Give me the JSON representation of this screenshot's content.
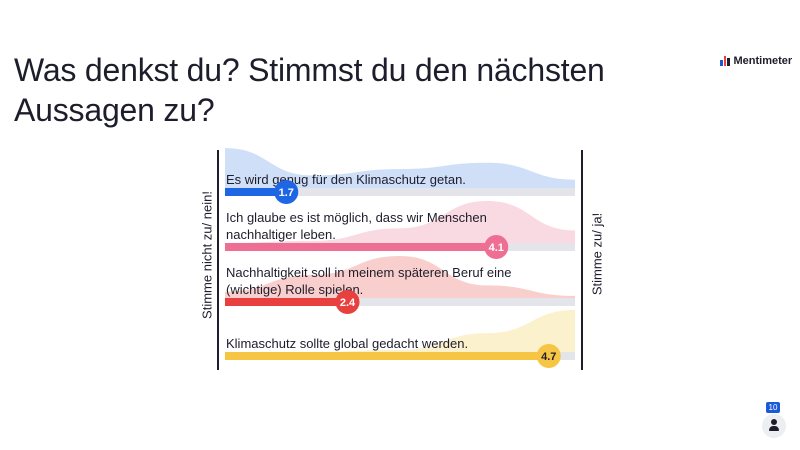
{
  "question": "Was denkst du? Stimmst du den nächsten Aussagen zu?",
  "brand": {
    "name": "Mentimeter",
    "icon": "mentimeter-logo-icon"
  },
  "scale": {
    "min_label": "Stimme nicht zu/ nein!",
    "max_label": "Stimme zu/ ja!"
  },
  "participants": {
    "count": "10",
    "icon": "person-icon"
  },
  "chart_data": {
    "type": "area",
    "title": "Was denkst du? Stimmst du den nächsten Aussagen zu?",
    "scale_min": 1,
    "scale_max": 5,
    "min_label": "Stimme nicht zu/ nein!",
    "max_label": "Stimme zu/ ja!",
    "grid": false,
    "series": [
      {
        "statement_lines": [
          "Es wird genug für den Klimaschutz getan."
        ],
        "average": 1.7,
        "average_label": "1.7",
        "color": "#1f66e5",
        "fill_color": "#c7d9f7",
        "density": [
          0.95,
          0.3,
          0.45,
          0.6,
          0.2
        ]
      },
      {
        "statement_lines": [
          "Ich glaube es ist möglich, dass wir Menschen",
          "nachhaltiger leben."
        ],
        "average": 4.1,
        "average_label": "4.1",
        "color": "#ee6f93",
        "fill_color": "#f9d3dd",
        "density": [
          0.0,
          0.05,
          0.35,
          1.0,
          0.3
        ]
      },
      {
        "statement_lines": [
          "Nachhaltigkeit soll in meinem späteren Beruf eine",
          "(wichtige) Rolle spielen."
        ],
        "average": 2.4,
        "average_label": "2.4",
        "color": "#e8403e",
        "fill_color": "#f8c7c4",
        "density": [
          0.15,
          0.55,
          1.0,
          0.3,
          0.05
        ]
      },
      {
        "statement_lines": [
          "Klimaschutz sollte global gedacht werden."
        ],
        "average": 4.7,
        "average_label": "4.7",
        "color": "#f7c544",
        "fill_color": "#fbeec4",
        "density": [
          0.0,
          0.0,
          0.05,
          0.45,
          1.0
        ]
      }
    ]
  }
}
